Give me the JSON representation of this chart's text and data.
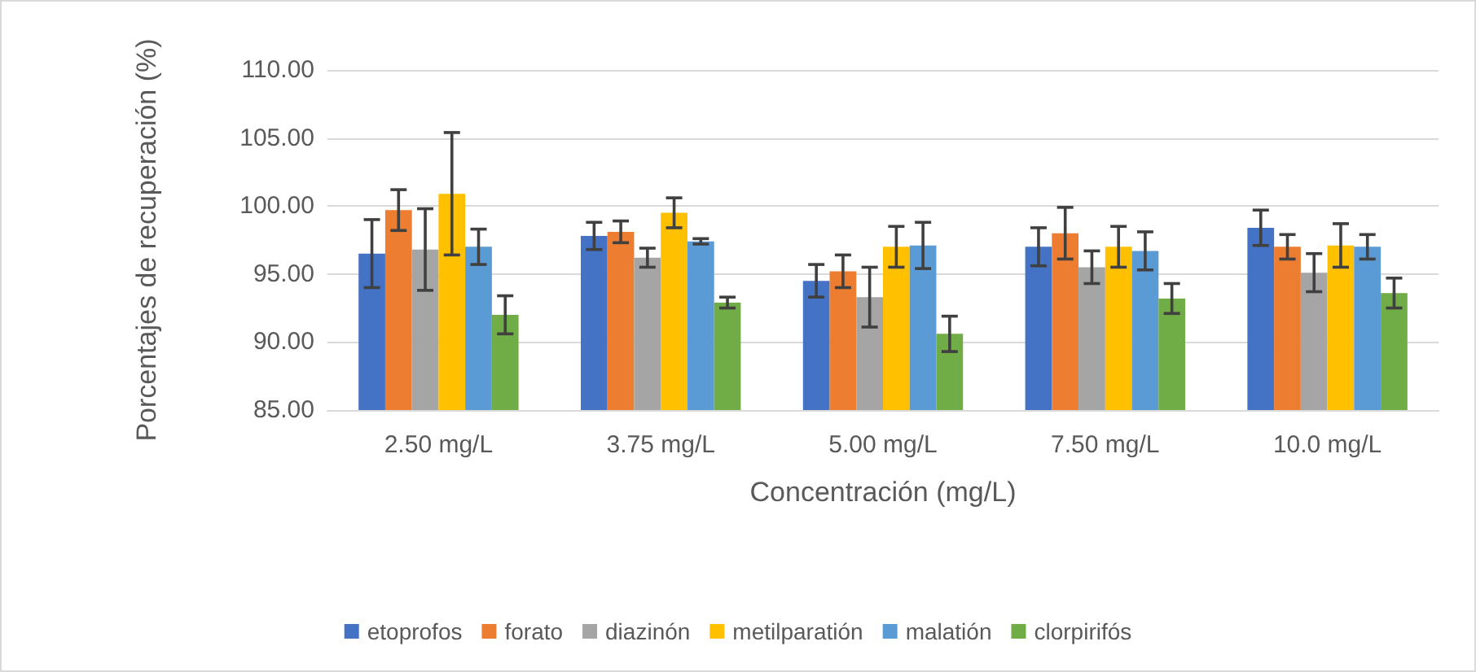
{
  "chart_data": {
    "type": "bar",
    "xlabel": "Concentración (mg/L)",
    "ylabel": "Porcentajes de recuperación (%)",
    "categories": [
      "2.50 mg/L",
      "3.75 mg/L",
      "5.00 mg/L",
      "7.50 mg/L",
      "10.0 mg/L"
    ],
    "series": [
      {
        "name": "etoprofos",
        "color": "#4472c4",
        "values": [
          96.5,
          97.8,
          94.5,
          97.0,
          98.4
        ],
        "errors": [
          2.5,
          1.0,
          1.2,
          1.4,
          1.3
        ]
      },
      {
        "name": "forato",
        "color": "#ed7d31",
        "values": [
          99.7,
          98.1,
          95.2,
          98.0,
          97.0
        ],
        "errors": [
          1.5,
          0.8,
          1.2,
          1.9,
          0.9
        ]
      },
      {
        "name": "diazinón",
        "color": "#a5a5a5",
        "values": [
          96.8,
          96.2,
          93.3,
          95.5,
          95.1
        ],
        "errors": [
          3.0,
          0.7,
          2.2,
          1.2,
          1.4
        ]
      },
      {
        "name": "metilparatión",
        "color": "#ffc000",
        "values": [
          100.9,
          99.5,
          97.0,
          97.0,
          97.1
        ],
        "errors": [
          4.5,
          1.1,
          1.5,
          1.5,
          1.6
        ]
      },
      {
        "name": "malatión",
        "color": "#5b9bd5",
        "values": [
          97.0,
          97.4,
          97.1,
          96.7,
          97.0
        ],
        "errors": [
          1.3,
          0.2,
          1.7,
          1.4,
          0.9
        ]
      },
      {
        "name": "clorpirifós",
        "color": "#70ad47",
        "values": [
          92.0,
          92.9,
          90.6,
          93.2,
          93.6
        ],
        "errors": [
          1.4,
          0.4,
          1.3,
          1.1,
          1.1
        ]
      }
    ],
    "ylim": [
      85,
      110
    ],
    "yticks": [
      {
        "value": 85,
        "label": "85.00"
      },
      {
        "value": 90,
        "label": "90.00"
      },
      {
        "value": 95,
        "label": "95.00"
      },
      {
        "value": 100,
        "label": "100.00"
      },
      {
        "value": 105,
        "label": "105.00"
      },
      {
        "value": 110,
        "label": "110.00"
      }
    ],
    "grid": "y",
    "legend": "bottom"
  }
}
